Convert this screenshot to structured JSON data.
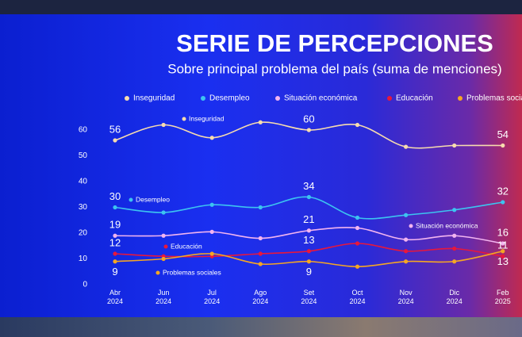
{
  "chart_data": {
    "type": "line",
    "title": "SERIE DE PERCEPCIONES",
    "subtitle": "Sobre principal problema del país (suma de menciones)",
    "categories": [
      "Abr 2024",
      "Jun 2024",
      "Jul 2024",
      "Ago 2024",
      "Set 2024",
      "Oct 2024",
      "Nov 2024",
      "Dic 2024",
      "Feb 2025"
    ],
    "series": [
      {
        "name": "Inseguridad",
        "color": "#f7dcae",
        "values": [
          56,
          62,
          57,
          63,
          60,
          62,
          53.5,
          54,
          54
        ]
      },
      {
        "name": "Desempleo",
        "color": "#3cc4f0",
        "values": [
          30,
          28,
          31,
          30,
          34,
          26,
          27,
          29,
          32
        ]
      },
      {
        "name": "Situación económica",
        "color": "#f2b4f0",
        "values": [
          19,
          19,
          20.5,
          18,
          21,
          22,
          17.5,
          19,
          16
        ]
      },
      {
        "name": "Educación",
        "color": "#e8173c",
        "values": [
          12,
          11,
          11,
          12,
          13,
          16,
          13,
          14,
          11
        ]
      },
      {
        "name": "Problemas sociales",
        "color": "#f5a623",
        "values": [
          9,
          10,
          12,
          8,
          9,
          7,
          9,
          9,
          13
        ]
      }
    ],
    "labeled_points": [
      0,
      4,
      8
    ],
    "ylim": [
      0,
      60
    ],
    "yticks": [
      0,
      10,
      20,
      30,
      40,
      50,
      60
    ],
    "grid": false
  }
}
